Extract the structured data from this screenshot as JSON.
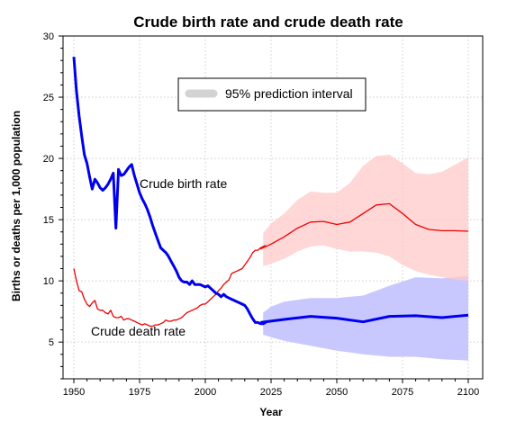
{
  "chart_data": {
    "type": "line",
    "title": "Crude birth rate and crude death rate",
    "xlabel": "Year",
    "ylabel": "Births or deaths per 1,000 population",
    "xlim": [
      1950,
      2100
    ],
    "ylim": [
      2,
      30
    ],
    "x_ticks": [
      1950,
      1975,
      2000,
      2025,
      2050,
      2075,
      2100
    ],
    "y_ticks": [
      5,
      10,
      15,
      20,
      25,
      30
    ],
    "grid": true,
    "legend": {
      "label": "95% prediction interval",
      "placement": "top-center"
    },
    "annotations": [
      "Crude birth rate",
      "Crude death rate"
    ],
    "colors": {
      "birth": "#0000ee",
      "death": "#ee0000",
      "birth_band": "#c8c8ff",
      "death_band": "#ffcaca",
      "legend_swatch": "#d3d3d3"
    },
    "series": [
      {
        "name": "Crude birth rate",
        "x": [
          1950,
          1951,
          1952,
          1953,
          1954,
          1955,
          1956,
          1957,
          1958,
          1959,
          1960,
          1961,
          1962,
          1963,
          1964,
          1965,
          1966,
          1967,
          1968,
          1969,
          1970,
          1971,
          1972,
          1973,
          1974,
          1975,
          1976,
          1977,
          1978,
          1979,
          1980,
          1981,
          1982,
          1983,
          1984,
          1985,
          1986,
          1987,
          1988,
          1989,
          1990,
          1991,
          1992,
          1993,
          1994,
          1995,
          1996,
          1997,
          1998,
          1999,
          2000,
          2001,
          2002,
          2003,
          2004,
          2005,
          2006,
          2007,
          2008,
          2009,
          2010,
          2011,
          2012,
          2013,
          2014,
          2015,
          2016,
          2017,
          2018,
          2019,
          2020,
          2021,
          2022,
          2023
        ],
        "values": [
          28.3,
          25.5,
          23.5,
          21.8,
          20.3,
          19.6,
          18.5,
          17.5,
          18.3,
          18.0,
          17.6,
          17.4,
          17.6,
          17.9,
          18.3,
          18.8,
          14.3,
          19.1,
          18.6,
          18.7,
          19.0,
          19.3,
          19.5,
          18.6,
          17.9,
          17.2,
          16.7,
          16.3,
          15.8,
          15.2,
          14.5,
          13.9,
          13.3,
          12.7,
          12.5,
          12.3,
          12.0,
          11.6,
          11.2,
          10.8,
          10.3,
          10.0,
          9.9,
          9.9,
          9.7,
          10.0,
          9.7,
          9.7,
          9.7,
          9.6,
          9.5,
          9.6,
          9.4,
          9.2,
          9.0,
          8.9,
          8.7,
          8.9,
          8.7,
          8.6,
          8.5,
          8.4,
          8.3,
          8.2,
          8.1,
          8.0,
          7.7,
          7.3,
          6.9,
          6.6,
          6.6,
          6.5,
          6.5,
          6.6
        ]
      },
      {
        "name": "Crude death rate",
        "x": [
          1950,
          1951,
          1952,
          1953,
          1954,
          1955,
          1956,
          1957,
          1958,
          1959,
          1960,
          1961,
          1962,
          1963,
          1964,
          1965,
          1966,
          1967,
          1968,
          1969,
          1970,
          1971,
          1972,
          1973,
          1974,
          1975,
          1976,
          1977,
          1978,
          1979,
          1980,
          1981,
          1982,
          1983,
          1984,
          1985,
          1986,
          1987,
          1988,
          1989,
          1990,
          1991,
          1992,
          1993,
          1994,
          1995,
          1996,
          1997,
          1998,
          1999,
          2000,
          2001,
          2002,
          2003,
          2004,
          2005,
          2006,
          2007,
          2008,
          2009,
          2010,
          2011,
          2012,
          2013,
          2014,
          2015,
          2016,
          2017,
          2018,
          2019,
          2020,
          2021,
          2022,
          2023
        ],
        "values": [
          11.0,
          10.0,
          9.2,
          9.1,
          8.5,
          8.1,
          7.9,
          8.2,
          8.4,
          7.7,
          7.6,
          7.6,
          7.4,
          7.3,
          7.6,
          7.1,
          7.0,
          7.0,
          7.1,
          6.8,
          6.9,
          6.9,
          6.8,
          6.7,
          6.6,
          6.5,
          6.4,
          6.5,
          6.4,
          6.3,
          6.3,
          6.4,
          6.4,
          6.5,
          6.6,
          6.8,
          6.7,
          6.7,
          6.8,
          6.8,
          6.9,
          7.0,
          7.2,
          7.4,
          7.5,
          7.6,
          7.7,
          7.8,
          8.0,
          8.1,
          8.1,
          8.3,
          8.5,
          8.7,
          8.9,
          9.2,
          9.4,
          9.7,
          9.9,
          10.1,
          10.6,
          10.7,
          10.8,
          10.9,
          11.0,
          11.3,
          11.6,
          11.9,
          12.3,
          12.5,
          12.5,
          12.7,
          12.8,
          12.9
        ]
      },
      {
        "name": "Crude birth rate projection",
        "x": [
          2021,
          2030,
          2040,
          2050,
          2060,
          2070,
          2080,
          2090,
          2100
        ],
        "values": [
          6.6,
          6.85,
          7.1,
          6.95,
          6.65,
          7.1,
          7.15,
          7.0,
          7.2
        ]
      },
      {
        "name": "Crude death rate projection",
        "x": [
          2021,
          2025,
          2030,
          2035,
          2040,
          2045,
          2050,
          2055,
          2060,
          2065,
          2070,
          2075,
          2080,
          2085,
          2090,
          2095,
          2100
        ],
        "values": [
          12.6,
          13.0,
          13.6,
          14.3,
          14.8,
          14.85,
          14.6,
          14.8,
          15.5,
          16.2,
          16.3,
          15.5,
          14.6,
          14.2,
          14.1,
          14.1,
          14.05
        ]
      }
    ],
    "intervals": [
      {
        "series": "Crude birth rate projection",
        "x": [
          2022,
          2025,
          2030,
          2040,
          2050,
          2060,
          2070,
          2080,
          2090,
          2100
        ],
        "lower": [
          5.6,
          5.4,
          5.1,
          4.7,
          4.3,
          4.0,
          3.8,
          3.8,
          3.6,
          3.5
        ],
        "upper": [
          7.4,
          7.9,
          8.3,
          8.6,
          8.6,
          8.8,
          9.6,
          10.3,
          10.2,
          10.4
        ]
      },
      {
        "series": "Crude death rate projection",
        "x": [
          2022,
          2025,
          2030,
          2035,
          2040,
          2045,
          2050,
          2055,
          2060,
          2065,
          2070,
          2075,
          2080,
          2085,
          2090,
          2095,
          2100
        ],
        "lower": [
          11.2,
          11.4,
          11.8,
          12.4,
          12.8,
          12.9,
          12.6,
          12.4,
          12.4,
          12.3,
          12.0,
          11.3,
          10.8,
          10.5,
          10.3,
          10.1,
          10.0
        ],
        "upper": [
          13.9,
          14.7,
          15.5,
          16.6,
          17.3,
          17.2,
          17.2,
          18.0,
          19.4,
          20.2,
          20.3,
          19.6,
          18.8,
          18.7,
          18.9,
          19.5,
          20.1
        ]
      }
    ]
  }
}
